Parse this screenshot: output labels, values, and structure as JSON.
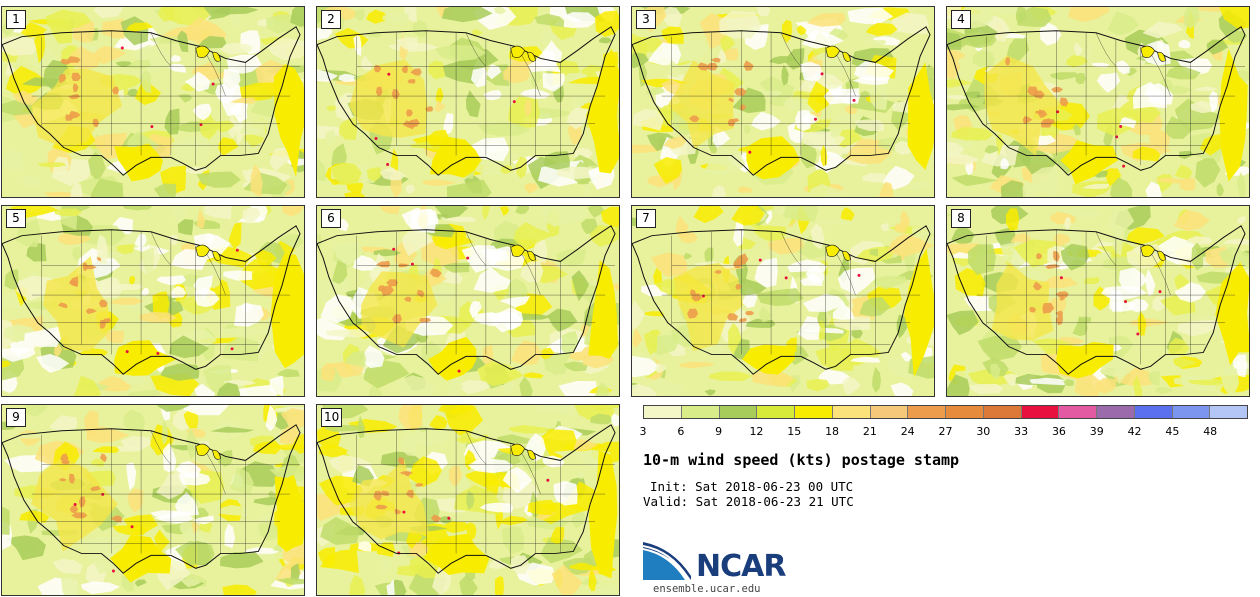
{
  "panels": [
    {
      "label": "1"
    },
    {
      "label": "2"
    },
    {
      "label": "3"
    },
    {
      "label": "4"
    },
    {
      "label": "5"
    },
    {
      "label": "6"
    },
    {
      "label": "7"
    },
    {
      "label": "8"
    },
    {
      "label": "9"
    },
    {
      "label": "10"
    }
  ],
  "colorbar": {
    "colors": [
      "#f3f6c6",
      "#d8ec8a",
      "#a8cc5a",
      "#d6ea3a",
      "#f8ec00",
      "#fbe27a",
      "#f6c97a",
      "#ec9c4a",
      "#e68a3c",
      "#dc7838",
      "#e8103e",
      "#e35aa2",
      "#9a6aaa",
      "#5a70ee",
      "#7c96f0",
      "#b4c6f6"
    ],
    "ticks": [
      "3",
      "6",
      "9",
      "12",
      "15",
      "18",
      "21",
      "24",
      "27",
      "30",
      "33",
      "36",
      "39",
      "42",
      "45",
      "48"
    ]
  },
  "title": "10-m wind speed (kts) postage stamp",
  "init": "Init: Sat 2018-06-23 00 UTC",
  "valid": "Valid: Sat 2018-06-23 21 UTC",
  "logo": {
    "text": "NCAR",
    "site": "ensemble.ucar.edu"
  }
}
